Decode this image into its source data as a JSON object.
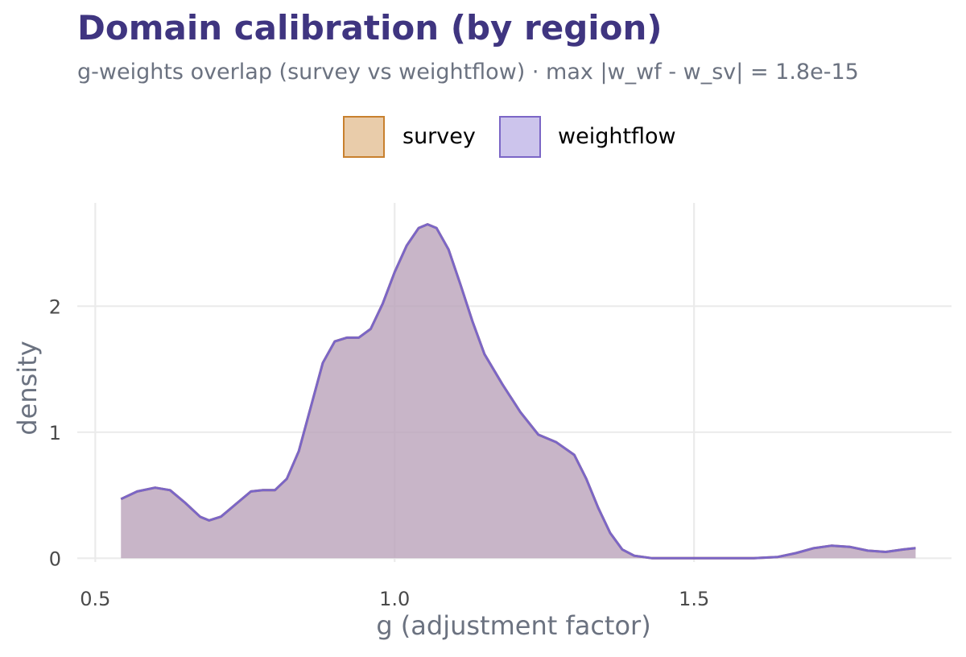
{
  "chart_data": {
    "type": "area",
    "title": "Domain calibration (by region)",
    "subtitle": "g-weights overlap (survey vs weightflow) · max |w_wf - w_sv| = 1.8e-15",
    "xlabel": "g (adjustment factor)",
    "ylabel": "density",
    "xlim": [
      0.47,
      1.93
    ],
    "ylim": [
      -0.03,
      2.82
    ],
    "x_ticks": [
      0.5,
      1.0,
      1.5
    ],
    "x_tick_labels": [
      "0.5",
      "1.0",
      "1.5"
    ],
    "y_ticks": [
      0,
      1,
      2
    ],
    "y_tick_labels": [
      "0",
      "1",
      "2"
    ],
    "grid": true,
    "legend_position": "top",
    "series": [
      {
        "name": "survey",
        "fill": "#e9ccaa",
        "stroke": "#c8802e",
        "points": [
          [
            0.543,
            0.47
          ],
          [
            0.57,
            0.53
          ],
          [
            0.6,
            0.56
          ],
          [
            0.625,
            0.54
          ],
          [
            0.65,
            0.44
          ],
          [
            0.675,
            0.33
          ],
          [
            0.69,
            0.3
          ],
          [
            0.71,
            0.33
          ],
          [
            0.74,
            0.45
          ],
          [
            0.76,
            0.53
          ],
          [
            0.78,
            0.54
          ],
          [
            0.8,
            0.54
          ],
          [
            0.82,
            0.63
          ],
          [
            0.84,
            0.85
          ],
          [
            0.86,
            1.2
          ],
          [
            0.88,
            1.55
          ],
          [
            0.9,
            1.72
          ],
          [
            0.92,
            1.75
          ],
          [
            0.94,
            1.75
          ],
          [
            0.96,
            1.82
          ],
          [
            0.98,
            2.02
          ],
          [
            1.0,
            2.27
          ],
          [
            1.02,
            2.48
          ],
          [
            1.04,
            2.62
          ],
          [
            1.055,
            2.65
          ],
          [
            1.07,
            2.62
          ],
          [
            1.09,
            2.45
          ],
          [
            1.11,
            2.17
          ],
          [
            1.13,
            1.88
          ],
          [
            1.15,
            1.62
          ],
          [
            1.18,
            1.38
          ],
          [
            1.21,
            1.16
          ],
          [
            1.24,
            0.98
          ],
          [
            1.27,
            0.92
          ],
          [
            1.3,
            0.82
          ],
          [
            1.32,
            0.63
          ],
          [
            1.34,
            0.4
          ],
          [
            1.36,
            0.2
          ],
          [
            1.38,
            0.07
          ],
          [
            1.4,
            0.02
          ],
          [
            1.43,
            0.0
          ],
          [
            1.5,
            0.0
          ],
          [
            1.6,
            0.0
          ],
          [
            1.64,
            0.01
          ],
          [
            1.67,
            0.04
          ],
          [
            1.7,
            0.08
          ],
          [
            1.73,
            0.1
          ],
          [
            1.76,
            0.09
          ],
          [
            1.79,
            0.06
          ],
          [
            1.82,
            0.05
          ],
          [
            1.85,
            0.07
          ],
          [
            1.87,
            0.08
          ]
        ]
      },
      {
        "name": "weightflow",
        "fill": "#ccc4ec",
        "stroke": "#7b66c6",
        "points": [
          [
            0.543,
            0.47
          ],
          [
            0.57,
            0.53
          ],
          [
            0.6,
            0.56
          ],
          [
            0.625,
            0.54
          ],
          [
            0.65,
            0.44
          ],
          [
            0.675,
            0.33
          ],
          [
            0.69,
            0.3
          ],
          [
            0.71,
            0.33
          ],
          [
            0.74,
            0.45
          ],
          [
            0.76,
            0.53
          ],
          [
            0.78,
            0.54
          ],
          [
            0.8,
            0.54
          ],
          [
            0.82,
            0.63
          ],
          [
            0.84,
            0.85
          ],
          [
            0.86,
            1.2
          ],
          [
            0.88,
            1.55
          ],
          [
            0.9,
            1.72
          ],
          [
            0.92,
            1.75
          ],
          [
            0.94,
            1.75
          ],
          [
            0.96,
            1.82
          ],
          [
            0.98,
            2.02
          ],
          [
            1.0,
            2.27
          ],
          [
            1.02,
            2.48
          ],
          [
            1.04,
            2.62
          ],
          [
            1.055,
            2.65
          ],
          [
            1.07,
            2.62
          ],
          [
            1.09,
            2.45
          ],
          [
            1.11,
            2.17
          ],
          [
            1.13,
            1.88
          ],
          [
            1.15,
            1.62
          ],
          [
            1.18,
            1.38
          ],
          [
            1.21,
            1.16
          ],
          [
            1.24,
            0.98
          ],
          [
            1.27,
            0.92
          ],
          [
            1.3,
            0.82
          ],
          [
            1.32,
            0.63
          ],
          [
            1.34,
            0.4
          ],
          [
            1.36,
            0.2
          ],
          [
            1.38,
            0.07
          ],
          [
            1.4,
            0.02
          ],
          [
            1.43,
            0.0
          ],
          [
            1.5,
            0.0
          ],
          [
            1.6,
            0.0
          ],
          [
            1.64,
            0.01
          ],
          [
            1.67,
            0.04
          ],
          [
            1.7,
            0.08
          ],
          [
            1.73,
            0.1
          ],
          [
            1.76,
            0.09
          ],
          [
            1.79,
            0.06
          ],
          [
            1.82,
            0.05
          ],
          [
            1.85,
            0.07
          ],
          [
            1.87,
            0.08
          ]
        ]
      }
    ]
  },
  "colors": {
    "title": "#3f3580",
    "muted_text": "#6b7280",
    "grid": "#ebebeb",
    "overlap_fill": "#b9a2b9"
  }
}
